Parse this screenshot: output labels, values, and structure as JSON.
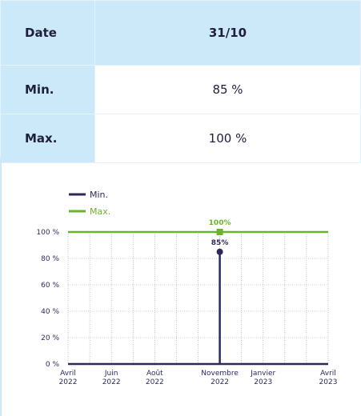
{
  "table": {
    "rows": [
      [
        "Date",
        "31/10"
      ],
      [
        "Min.",
        "85 %"
      ],
      [
        "Max.",
        "100 %"
      ]
    ]
  },
  "chart_data": {
    "type": "line",
    "series": [
      {
        "name": "Min.",
        "color": "#2b2a5c",
        "x": [
          0,
          7,
          7,
          7,
          12
        ],
        "values": [
          0,
          0,
          85,
          0,
          0
        ],
        "value_labels": [
          null,
          null,
          "85%",
          null,
          null
        ]
      },
      {
        "name": "Max.",
        "color": "#6ab42d",
        "x": [
          0,
          7,
          12
        ],
        "values": [
          100,
          100,
          100
        ],
        "value_labels": [
          null,
          "100%",
          null
        ]
      }
    ],
    "xlim": [
      0,
      12
    ],
    "xticks": [
      {
        "value": 0,
        "label": "Avril 2022"
      },
      {
        "value": 1,
        "label": null
      },
      {
        "value": 2,
        "label": "Juin 2022"
      },
      {
        "value": 3,
        "label": null
      },
      {
        "value": 4,
        "label": "Août 2022"
      },
      {
        "value": 5,
        "label": null
      },
      {
        "value": 6,
        "label": null
      },
      {
        "value": 7,
        "label": "Novembre 2022"
      },
      {
        "value": 8,
        "label": null
      },
      {
        "value": 9,
        "label": "Janvier 2023"
      },
      {
        "value": 10,
        "label": null
      },
      {
        "value": 11,
        "label": null
      },
      {
        "value": 12,
        "label": "Avril 2023"
      }
    ],
    "ylim": [
      0,
      100
    ],
    "yticks": [
      {
        "value": 0,
        "label": "0 %"
      },
      {
        "value": 20,
        "label": "20 %"
      },
      {
        "value": 40,
        "label": "40 %"
      },
      {
        "value": 60,
        "label": "60 %"
      },
      {
        "value": 80,
        "label": "80 %"
      },
      {
        "value": 100,
        "label": "100 %"
      }
    ],
    "grid": true,
    "legend": "top-left"
  }
}
